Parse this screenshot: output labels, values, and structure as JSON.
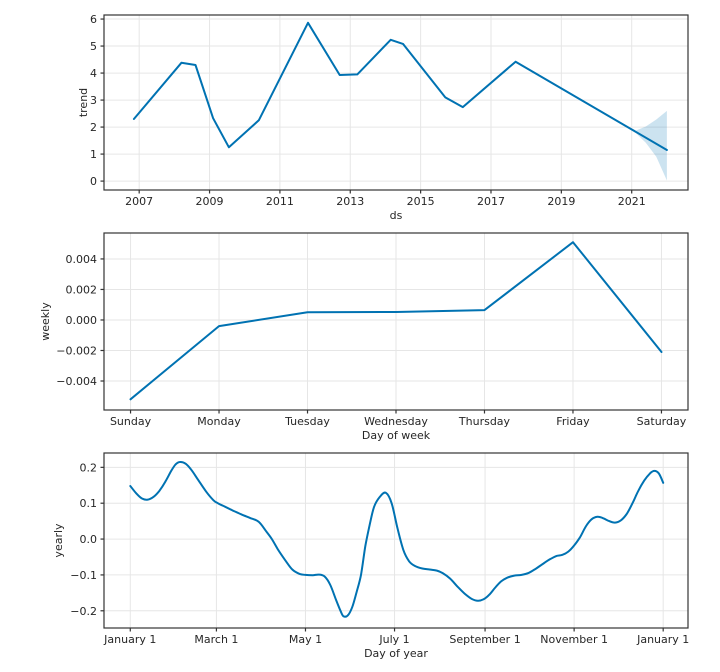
{
  "figure": {
    "type": "prophet-forecast-components",
    "background": "#ffffff",
    "line_color": "#0072B2",
    "band_color": "#0072B2",
    "band_opacity": 0.2,
    "grid_color": "#e6e6e6",
    "spine_color": "#343434",
    "text_color": "#262626"
  },
  "chart_data": [
    {
      "type": "line",
      "name": "trend",
      "title": "",
      "xlabel": "ds",
      "ylabel": "trend",
      "xlim": [
        2006.0,
        2022.6
      ],
      "ylim": [
        -0.33,
        6.15
      ],
      "grid": true,
      "legend": "none",
      "xticks": [
        2007,
        2009,
        2011,
        2013,
        2015,
        2017,
        2019,
        2021
      ],
      "xtick_labels": [
        "2007",
        "2009",
        "2011",
        "2013",
        "2015",
        "2017",
        "2019",
        "2021"
      ],
      "yticks": [
        0,
        1,
        2,
        3,
        4,
        5,
        6
      ],
      "ytick_labels": [
        "0",
        "1",
        "2",
        "3",
        "4",
        "5",
        "6"
      ],
      "smooth": false,
      "x": [
        2006.85,
        2008.2,
        2008.6,
        2009.1,
        2009.55,
        2010.4,
        2011.8,
        2012.7,
        2013.2,
        2014.15,
        2014.5,
        2015.7,
        2016.2,
        2017.7,
        2022.0
      ],
      "y": [
        2.3,
        4.38,
        4.3,
        2.33,
        1.25,
        2.25,
        5.86,
        3.93,
        3.95,
        5.23,
        5.08,
        3.1,
        2.74,
        4.42,
        1.15
      ],
      "band": {
        "x": [
          2021.1,
          2021.4,
          2021.7,
          2022.0
        ],
        "upper": [
          1.86,
          2.02,
          2.28,
          2.6
        ],
        "lower": [
          1.8,
          1.42,
          0.9,
          0.02
        ]
      }
    },
    {
      "type": "line",
      "name": "weekly",
      "title": "",
      "xlabel": "Day of week",
      "ylabel": "weekly",
      "xlim": [
        -0.3,
        6.3
      ],
      "ylim": [
        -0.0059,
        0.0057
      ],
      "grid": true,
      "legend": "none",
      "xticks": [
        0,
        1,
        2,
        3,
        4,
        5,
        6
      ],
      "xtick_labels": [
        "Sunday",
        "Monday",
        "Tuesday",
        "Wednesday",
        "Thursday",
        "Friday",
        "Saturday"
      ],
      "yticks": [
        -0.004,
        -0.002,
        0,
        0.002,
        0.004
      ],
      "ytick_labels": [
        "−0.004",
        "−0.002",
        "0.000",
        "0.002",
        "0.004"
      ],
      "smooth": false,
      "x": [
        0,
        1,
        2,
        3,
        4,
        5,
        6
      ],
      "y": [
        -0.0052,
        -0.0004,
        0.0005,
        0.00052,
        0.00065,
        0.0051,
        -0.0021
      ]
    },
    {
      "type": "line",
      "name": "yearly",
      "title": "",
      "xlabel": "Day of year",
      "ylabel": "yearly",
      "xlim": [
        -18,
        382
      ],
      "ylim": [
        -0.248,
        0.24
      ],
      "grid": true,
      "legend": "none",
      "xticks": [
        0,
        59,
        120,
        181,
        243,
        304,
        365
      ],
      "xtick_labels": [
        "January 1",
        "March 1",
        "May 1",
        "July 1",
        "September 1",
        "November 1",
        "January 1"
      ],
      "yticks": [
        -0.2,
        -0.1,
        0,
        0.1,
        0.2
      ],
      "ytick_labels": [
        "−0.2",
        "−0.1",
        "0.0",
        "0.1",
        "0.2"
      ],
      "smooth": true,
      "x": [
        0,
        4,
        8,
        12,
        16,
        20,
        24,
        28,
        31,
        34,
        38,
        42,
        46,
        52,
        57,
        60,
        65,
        70,
        76,
        82,
        88,
        93,
        97,
        101,
        106,
        111,
        116,
        120,
        125,
        129,
        133,
        137,
        141,
        144,
        146,
        149,
        152,
        155,
        158,
        161,
        164,
        167,
        171,
        175,
        179,
        183,
        187,
        191,
        195,
        200,
        205,
        210,
        214,
        219,
        224,
        229,
        234,
        238,
        242,
        246,
        250,
        254,
        258,
        263,
        268,
        273,
        278,
        283,
        288,
        292,
        296,
        300,
        304,
        308,
        312,
        316,
        320,
        324,
        328,
        332,
        336,
        340,
        344,
        348,
        352,
        356,
        359,
        362,
        365
      ],
      "y": [
        0.148,
        0.128,
        0.113,
        0.11,
        0.118,
        0.135,
        0.16,
        0.19,
        0.208,
        0.215,
        0.21,
        0.192,
        0.168,
        0.132,
        0.108,
        0.1,
        0.09,
        0.08,
        0.069,
        0.059,
        0.048,
        0.022,
        0.0,
        -0.028,
        -0.058,
        -0.085,
        -0.097,
        -0.1,
        -0.101,
        -0.099,
        -0.104,
        -0.128,
        -0.17,
        -0.2,
        -0.215,
        -0.213,
        -0.19,
        -0.148,
        -0.1,
        -0.02,
        0.04,
        0.09,
        0.118,
        0.129,
        0.1,
        0.03,
        -0.03,
        -0.062,
        -0.075,
        -0.082,
        -0.085,
        -0.088,
        -0.095,
        -0.11,
        -0.132,
        -0.152,
        -0.167,
        -0.172,
        -0.168,
        -0.155,
        -0.135,
        -0.118,
        -0.108,
        -0.102,
        -0.1,
        -0.094,
        -0.082,
        -0.068,
        -0.055,
        -0.047,
        -0.044,
        -0.035,
        -0.018,
        0.005,
        0.035,
        0.055,
        0.062,
        0.058,
        0.05,
        0.046,
        0.052,
        0.07,
        0.1,
        0.135,
        0.163,
        0.183,
        0.19,
        0.183,
        0.157
      ]
    }
  ]
}
